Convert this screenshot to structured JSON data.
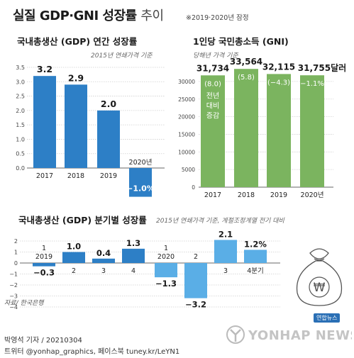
{
  "header": {
    "title_main": "실질 GDP·GNI 성장률",
    "title_suffix": "추이",
    "note": "※2019·2020년 잠정"
  },
  "colors": {
    "blue": "#2d7fc6",
    "green": "#7bb45f",
    "light_blue": "#5aaee6",
    "grid": "#cfcfcf",
    "text_dark": "#1a1a1a"
  },
  "chart_data": [
    {
      "type": "bar",
      "title": "국내총생산 (GDP) 연간 성장률",
      "subtitle": "2015년 연쇄가격 기준",
      "categories": [
        "2017",
        "2018",
        "2019",
        "2020년"
      ],
      "x_tick_labels": [
        "2017",
        "2018",
        "2019",
        ""
      ],
      "values": [
        3.2,
        2.9,
        2.0,
        -1.0
      ],
      "value_labels": [
        "3.2",
        "2.9",
        "2.0",
        "−1.0%"
      ],
      "top_labels": [
        "",
        "",
        "",
        "2020년"
      ],
      "y_ticks": [
        "3.5",
        "3.0",
        "2.5",
        "2.0",
        "1.5",
        "1.0",
        "0.5",
        "0.0"
      ],
      "ylim": [
        -1.3,
        3.5
      ],
      "grid": true
    },
    {
      "type": "bar",
      "title": "1인당 국민총소득 (GNI)",
      "subtitle": "당해년 가격 기준",
      "categories": [
        "2017",
        "2018",
        "2019",
        "2020년"
      ],
      "values": [
        31734,
        33564,
        32115,
        31755
      ],
      "value_labels": [
        "31,734",
        "33,564",
        "32,115",
        "31,755달러"
      ],
      "inner_labels": [
        "(8.0)",
        "(5.8)",
        "(−4.3)",
        "(−1.1%)"
      ],
      "annotation": [
        "전년",
        "대비",
        "증감"
      ],
      "y_ticks": [
        "30000",
        "25000",
        "20000",
        "15000",
        "10000",
        "5000",
        "0"
      ],
      "ylim": [
        0,
        33000
      ],
      "grid": true
    },
    {
      "type": "bar",
      "title": "국내총생산 (GDP) 분기별 성장률",
      "subtitle": "2015년 연쇄가격 기준, 계절조정계열 전기 대비",
      "categories": [
        "2019 1",
        "2",
        "3",
        "4",
        "2020 1",
        "2",
        "3",
        "4분기"
      ],
      "values": [
        -0.3,
        1.0,
        0.4,
        1.3,
        -1.3,
        -3.2,
        2.1,
        1.2
      ],
      "value_labels": [
        "−0.3",
        "1.0",
        "0.4",
        "1.3",
        "−1.3",
        "−3.2",
        "2.1",
        "1.2%"
      ],
      "quarter_labels": [
        "1",
        "2",
        "3",
        "4",
        "1",
        "2",
        "3",
        "4분기"
      ],
      "year_labels": [
        "2019",
        "",
        "",
        "",
        "2020",
        "",
        "",
        ""
      ],
      "y_ticks": [
        "2",
        "1",
        "0",
        "−1",
        "−2",
        "−3",
        "−4"
      ],
      "ylim": [
        -4,
        2.3
      ],
      "grid": true
    }
  ],
  "footer": {
    "source": "자료/ 한국은행",
    "byline": "박영석 기자 /  20210304",
    "social": "트위터 @yonhap_graphics, 페이스북 tuney.kr/LeYN1",
    "logo_text": "YONHAP NEWS",
    "badge_text": "연합뉴스",
    "money_symbol": "₩"
  }
}
